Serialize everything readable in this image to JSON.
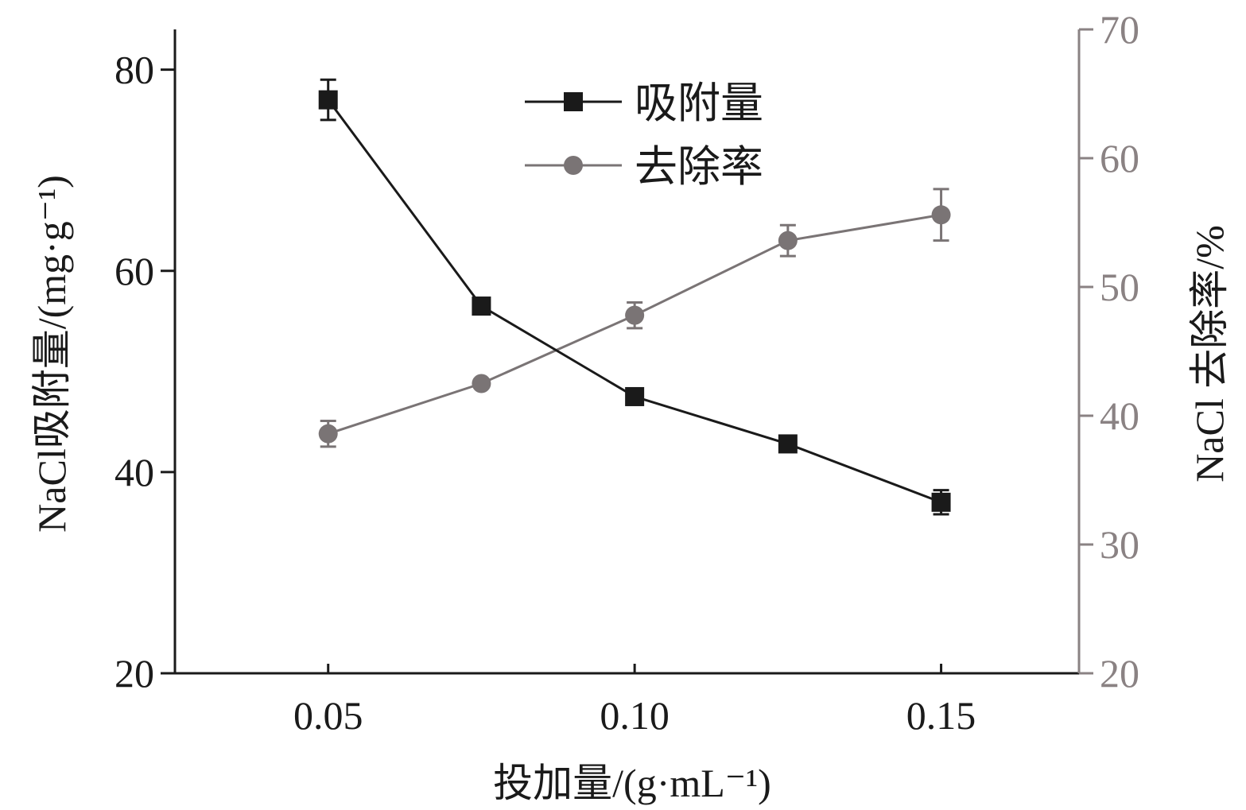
{
  "chart_data": {
    "type": "line",
    "xlabel": "投加量/(g·mL⁻¹)",
    "ylabel_left": "NaCl吸附量/(mg·g⁻¹)",
    "ylabel_right": "NaCl 去除率/%",
    "xlim": [
      0.025,
      0.1725
    ],
    "ylim_left": [
      20,
      84
    ],
    "ylim_right": [
      20,
      70
    ],
    "x_ticks": [
      0.05,
      0.1,
      0.15
    ],
    "x_tick_labels": [
      "0.05",
      "0.10",
      "0.15"
    ],
    "y_left_ticks": [
      20,
      40,
      60,
      80
    ],
    "y_right_ticks": [
      20,
      30,
      40,
      50,
      60,
      70
    ],
    "grid": false,
    "legend_position": "top-center",
    "colors": {
      "adsorption": "#1a1a1a",
      "removal": "#7a7475",
      "removal_axis": "#8a8283"
    },
    "series": [
      {
        "name": "吸附量",
        "axis": "left",
        "marker": "square",
        "x": [
          0.05,
          0.075,
          0.1,
          0.125,
          0.15
        ],
        "values": [
          77.0,
          56.5,
          47.5,
          42.8,
          37.0
        ],
        "errors": [
          2.0,
          0.5,
          0.8,
          0.6,
          1.2
        ]
      },
      {
        "name": "去除率",
        "axis": "right",
        "marker": "circle",
        "x": [
          0.05,
          0.075,
          0.1,
          0.125,
          0.15
        ],
        "values": [
          38.6,
          42.5,
          47.8,
          53.6,
          55.6
        ],
        "errors": [
          1.0,
          0.3,
          1.0,
          1.2,
          2.0
        ]
      }
    ]
  }
}
